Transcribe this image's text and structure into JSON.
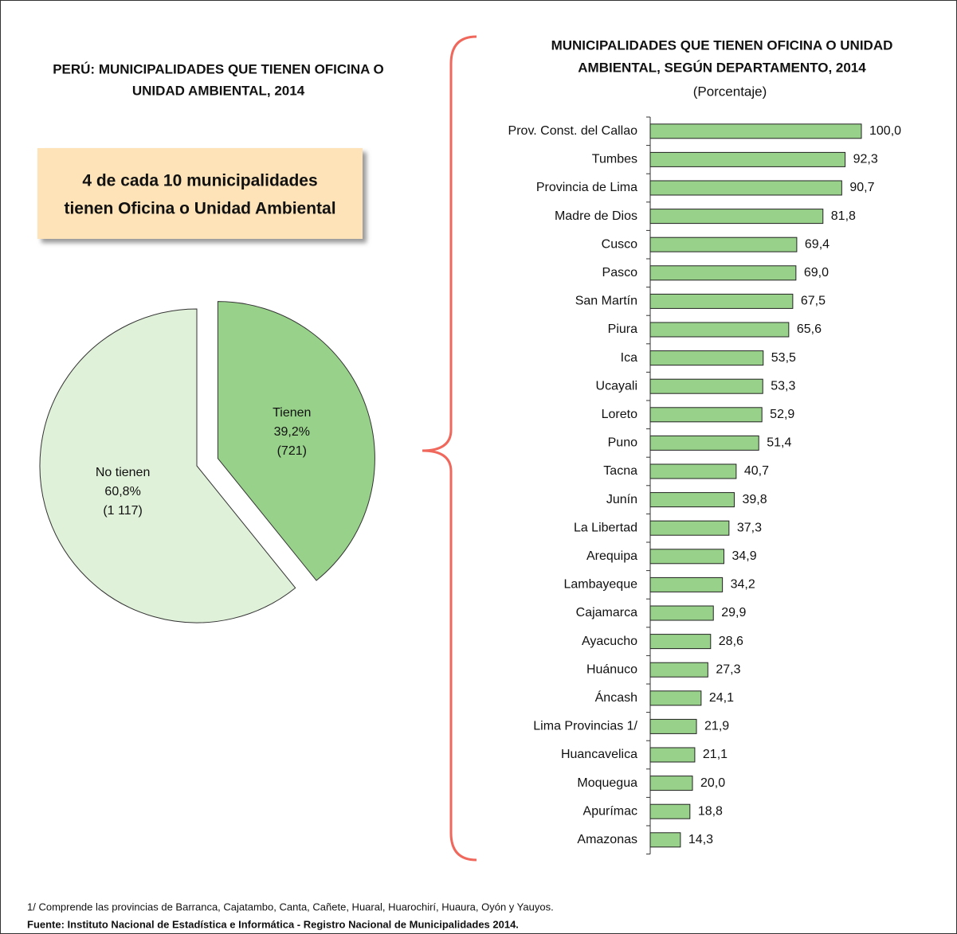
{
  "chart_data": [
    {
      "type": "pie",
      "title": [
        "PERÚ: MUNICIPALIDADES QUE TIENEN OFICINA O",
        "UNIDAD AMBIENTAL, 2014"
      ],
      "categories": [
        "Tienen",
        "No tienen"
      ],
      "values": [
        39.2,
        60.8
      ],
      "value_labels": [
        "39,2%",
        "60,8%"
      ],
      "counts": [
        721,
        1117
      ],
      "count_labels": [
        "(721)",
        "(1 117)"
      ],
      "colors": [
        "#98d28a",
        "#e0f1d9"
      ]
    },
    {
      "type": "bar",
      "title": [
        "MUNICIPALIDADES QUE TIENEN OFICINA O UNIDAD",
        "AMBIENTAL, SEGÚN DEPARTAMENTO, 2014"
      ],
      "subtitle": "(Porcentaje)",
      "orientation": "horizontal",
      "categories": [
        "Prov. Const. del Callao",
        "Tumbes",
        "Provincia de Lima",
        "Madre de Dios",
        "Cusco",
        "Pasco",
        "San Martín",
        "Piura",
        "Ica",
        "Ucayali",
        "Loreto",
        "Puno",
        "Tacna",
        "Junín",
        "La Libertad",
        "Arequipa",
        "Lambayeque",
        "Cajamarca",
        "Ayacucho",
        "Huánuco",
        "Áncash",
        "Lima Provincias 1/",
        "Huancavelica",
        "Moquegua",
        "Apurímac",
        "Amazonas"
      ],
      "values": [
        100.0,
        92.3,
        90.7,
        81.8,
        69.4,
        69.0,
        67.5,
        65.6,
        53.5,
        53.3,
        52.9,
        51.4,
        40.7,
        39.8,
        37.3,
        34.9,
        34.2,
        29.9,
        28.6,
        27.3,
        24.1,
        21.9,
        21.1,
        20.0,
        18.8,
        14.3
      ],
      "value_labels": [
        "100,0",
        "92,3",
        "90,7",
        "81,8",
        "69,4",
        "69,0",
        "67,5",
        "65,6",
        "53,5",
        "53,3",
        "52,9",
        "51,4",
        "40,7",
        "39,8",
        "37,3",
        "34,9",
        "34,2",
        "29,9",
        "28,6",
        "27,3",
        "24,1",
        "21,9",
        "21,1",
        "20,0",
        "18,8",
        "14,3"
      ],
      "color": "#98d28a",
      "xlim": [
        0,
        100
      ]
    }
  ],
  "callout": [
    "4 de cada 10 municipalidades",
    "tienen Oficina o Unidad Ambiental"
  ],
  "footnote": "1/ Comprende las provincias de Barranca, Cajatambo, Canta, Cañete, Huaral, Huarochirí, Huaura, Oyón y Yauyos.",
  "source": "Fuente: Instituto Nacional de Estadística e Informática - Registro Nacional de Municipalidades 2014."
}
